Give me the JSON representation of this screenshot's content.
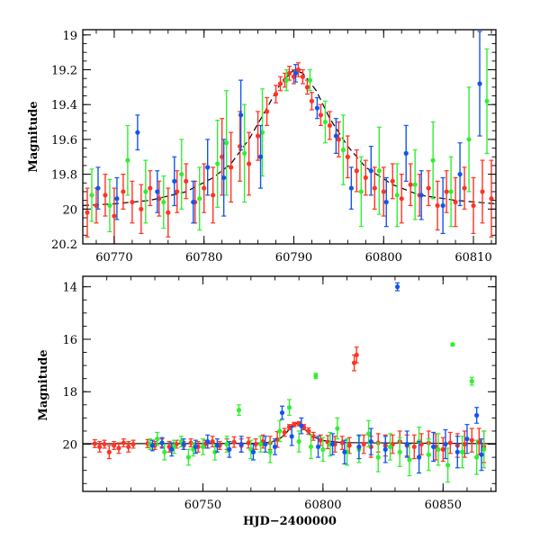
{
  "colors": {
    "red": "#ff3322",
    "green": "#33ee33",
    "blue": "#1155ee",
    "model": "#000000"
  },
  "chart_data": [
    {
      "type": "scatter",
      "panel": "top",
      "ylabel": "Magnitude",
      "xlabel": "",
      "xlim": [
        60766.5,
        60812.5
      ],
      "ylim": [
        20.2,
        18.97
      ],
      "y_inverted": true,
      "xticks": [
        60770,
        60780,
        60790,
        60800,
        60810
      ],
      "yticks": [
        19,
        19.2,
        19.4,
        19.6,
        19.8,
        20,
        20.2
      ],
      "ytick_labels": [
        "19",
        "19.2",
        "19.4",
        "19.6",
        "19.8",
        "20",
        "20.2"
      ],
      "grid": false,
      "legend": "none",
      "model_curve": {
        "style": "dashed",
        "x": [
          60766.5,
          60770,
          60774,
          60778,
          60781,
          60783,
          60785,
          60787,
          60788.5,
          60790,
          60791,
          60792.5,
          60794,
          60796,
          60798,
          60801,
          60804,
          60808,
          60812.5
        ],
        "y": [
          19.98,
          19.97,
          19.95,
          19.9,
          19.82,
          19.74,
          19.6,
          19.42,
          19.28,
          19.2,
          19.22,
          19.32,
          19.48,
          19.64,
          19.76,
          19.86,
          19.92,
          19.95,
          19.97
        ]
      },
      "series": [
        {
          "color": "red",
          "x": [
            60767,
            60768,
            60769,
            60770,
            60771,
            60772,
            60773,
            60774,
            60775,
            60776,
            60777,
            60778,
            60779,
            60780,
            60781,
            60782,
            60783,
            60784,
            60785,
            60786,
            60787,
            60788,
            60788.5,
            60789,
            60789.5,
            60790,
            60790.5,
            60791,
            60791.5,
            60792,
            60793,
            60794,
            60795,
            60796,
            60797,
            60798,
            60799,
            60800,
            60801,
            60802,
            60803,
            60804,
            60805,
            60806,
            60807,
            60808,
            60809,
            60810,
            60811,
            60812
          ],
          "y": [
            20.02,
            19.98,
            19.92,
            20.04,
            19.9,
            19.96,
            20.0,
            19.88,
            19.94,
            20.02,
            19.9,
            19.84,
            19.96,
            19.88,
            19.92,
            19.7,
            19.76,
            19.64,
            19.74,
            19.58,
            19.44,
            19.34,
            19.28,
            19.26,
            19.22,
            19.24,
            19.2,
            19.24,
            19.3,
            19.38,
            19.46,
            19.52,
            19.6,
            19.7,
            19.78,
            19.82,
            19.88,
            19.9,
            19.84,
            19.94,
            19.86,
            19.92,
            19.88,
            19.98,
            19.9,
            19.96,
            19.88,
            19.98,
            19.9,
            19.94
          ],
          "err": [
            0.14,
            0.1,
            0.12,
            0.16,
            0.1,
            0.12,
            0.14,
            0.1,
            0.1,
            0.14,
            0.12,
            0.1,
            0.12,
            0.14,
            0.16,
            0.22,
            0.2,
            0.2,
            0.18,
            0.14,
            0.08,
            0.05,
            0.04,
            0.04,
            0.04,
            0.04,
            0.04,
            0.04,
            0.04,
            0.05,
            0.06,
            0.08,
            0.1,
            0.12,
            0.12,
            0.1,
            0.12,
            0.14,
            0.1,
            0.14,
            0.12,
            0.12,
            0.1,
            0.14,
            0.12,
            0.14,
            0.12,
            0.16,
            0.18,
            0.22
          ]
        },
        {
          "color": "green",
          "x": [
            60767.5,
            60769.5,
            60771.5,
            60773.5,
            60775.5,
            60777.5,
            60779.5,
            60781.5,
            60782.5,
            60784.5,
            60786.5,
            60789.2,
            60791.8,
            60793.5,
            60795.5,
            60797.5,
            60799.5,
            60801.5,
            60803.5,
            60805.5,
            60807.5,
            60809.5,
            60811.5
          ],
          "y": [
            19.92,
            19.98,
            19.72,
            19.9,
            19.96,
            19.8,
            19.94,
            19.74,
            19.62,
            19.68,
            19.56,
            19.26,
            19.26,
            19.5,
            19.66,
            19.9,
            19.78,
            19.92,
            19.86,
            19.72,
            19.9,
            19.6,
            19.38
          ],
          "err": [
            0.15,
            0.15,
            0.2,
            0.18,
            0.15,
            0.2,
            0.18,
            0.25,
            0.3,
            0.28,
            0.25,
            0.06,
            0.06,
            0.12,
            0.2,
            0.2,
            0.25,
            0.18,
            0.2,
            0.22,
            0.2,
            0.3,
            0.3
          ]
        },
        {
          "color": "blue",
          "x": [
            60768.2,
            60770.3,
            60772.6,
            60774.8,
            60776.7,
            60778.8,
            60780.4,
            60782.2,
            60784.1,
            60786.3,
            60790.2,
            60792.6,
            60794.7,
            60796.4,
            60798.6,
            60800.3,
            60802.5,
            60804.2,
            60806.6,
            60808.5,
            60810.7
          ],
          "y": [
            19.88,
            19.94,
            19.56,
            19.9,
            19.84,
            19.96,
            19.76,
            19.82,
            19.46,
            19.7,
            19.22,
            19.42,
            19.58,
            19.88,
            19.78,
            19.96,
            19.68,
            19.92,
            19.98,
            19.8,
            19.28
          ],
          "err": [
            0.12,
            0.12,
            0.1,
            0.12,
            0.14,
            0.12,
            0.16,
            0.22,
            0.2,
            0.18,
            0.05,
            0.06,
            0.1,
            0.12,
            0.14,
            0.14,
            0.16,
            0.14,
            0.16,
            0.18,
            0.3
          ]
        }
      ]
    },
    {
      "type": "scatter",
      "panel": "bottom",
      "ylabel": "Magnitude",
      "xlabel": "HJD−2400000",
      "xlim": [
        60700,
        60872
      ],
      "ylim": [
        21.8,
        13.6
      ],
      "y_inverted": true,
      "xticks": [
        60750,
        60800,
        60850
      ],
      "yticks": [
        14,
        16,
        18,
        20
      ],
      "ytick_labels": [
        "14",
        "16",
        "18",
        "20"
      ],
      "grid": false,
      "legend": "none",
      "model_curve": {
        "style": "solid",
        "x": [
          60700,
          60770,
          60778,
          60782,
          60785,
          60787,
          60789,
          60791,
          60793,
          60796,
          60800,
          60808,
          60872
        ],
        "y": [
          19.98,
          19.97,
          19.93,
          19.8,
          19.55,
          19.3,
          19.2,
          19.25,
          19.48,
          19.72,
          19.86,
          19.94,
          19.98
        ]
      },
      "series": [
        {
          "color": "red",
          "x": [
            60705,
            60707,
            60709,
            60711,
            60713,
            60715,
            60717,
            60719,
            60721,
            60727,
            60730,
            60733,
            60736,
            60739,
            60742,
            60745,
            60748,
            60751,
            60754,
            60757,
            60760,
            60763,
            60766,
            60769,
            60772,
            60775,
            60778,
            60781,
            60784,
            60786,
            60788,
            60790,
            60792,
            60794,
            60796,
            60799,
            60802,
            60805,
            60808,
            60811,
            60813,
            60814,
            60817,
            60820,
            60823,
            60826,
            60829,
            60832,
            60835,
            60838,
            60841,
            60844,
            60847,
            60850,
            60853,
            60856,
            60859,
            60862,
            60865,
            60867
          ],
          "y": [
            19.98,
            20.1,
            20.0,
            20.3,
            20.05,
            20.15,
            19.95,
            20.1,
            20.0,
            19.98,
            20.05,
            19.95,
            20.1,
            20.0,
            20.05,
            19.95,
            20.1,
            20.0,
            19.9,
            20.05,
            20.0,
            19.92,
            20.05,
            19.95,
            20.0,
            19.9,
            19.95,
            19.82,
            19.55,
            19.35,
            19.25,
            19.22,
            19.35,
            19.5,
            19.7,
            19.85,
            19.92,
            20.0,
            19.95,
            20.05,
            16.9,
            16.6,
            20.0,
            20.1,
            19.95,
            20.05,
            20.0,
            19.9,
            20.05,
            20.1,
            20.0,
            19.95,
            20.1,
            20.2,
            19.95,
            20.05,
            20.0,
            19.85,
            19.9,
            20.1
          ],
          "err": [
            0.15,
            0.2,
            0.15,
            0.25,
            0.15,
            0.2,
            0.15,
            0.2,
            0.15,
            0.15,
            0.15,
            0.15,
            0.2,
            0.15,
            0.15,
            0.15,
            0.2,
            0.15,
            0.2,
            0.15,
            0.2,
            0.2,
            0.25,
            0.2,
            0.2,
            0.25,
            0.25,
            0.3,
            0.15,
            0.1,
            0.08,
            0.08,
            0.1,
            0.12,
            0.15,
            0.2,
            0.25,
            0.3,
            0.25,
            0.3,
            0.3,
            0.3,
            0.35,
            0.4,
            0.35,
            0.4,
            0.35,
            0.4,
            0.4,
            0.45,
            0.4,
            0.45,
            0.5,
            0.45,
            0.4,
            0.45,
            0.5,
            0.45,
            0.5,
            0.6
          ]
        },
        {
          "color": "green",
          "x": [
            60728,
            60731,
            60734,
            60738,
            60741,
            60744,
            60746,
            60750,
            60755,
            60760,
            60765,
            60770,
            60774,
            60778,
            60782,
            60786,
            60790,
            60795,
            60797,
            60800,
            60803,
            60806,
            60810,
            60815,
            60819,
            60823,
            60828,
            60832,
            60836,
            60840,
            60844,
            60848,
            60852,
            60854,
            60858,
            60862,
            60864,
            60867
          ],
          "y": [
            20.0,
            19.8,
            20.3,
            20.1,
            19.9,
            20.5,
            20.2,
            20.1,
            20.3,
            20.0,
            18.7,
            20.2,
            20.0,
            20.3,
            19.5,
            18.6,
            19.9,
            20.1,
            17.4,
            20.2,
            20.0,
            19.4,
            20.3,
            20.2,
            19.6,
            20.5,
            20.1,
            20.3,
            20.6,
            19.9,
            20.4,
            20.2,
            20.8,
            16.2,
            20.3,
            17.6,
            20.5,
            20.2
          ],
          "err": [
            0.2,
            0.25,
            0.3,
            0.25,
            0.2,
            0.3,
            0.25,
            0.3,
            0.3,
            0.3,
            0.2,
            0.35,
            0.3,
            0.4,
            0.4,
            0.3,
            0.4,
            0.45,
            0.1,
            0.45,
            0.45,
            0.4,
            0.5,
            0.5,
            0.5,
            0.55,
            0.5,
            0.55,
            0.6,
            0.55,
            0.6,
            0.6,
            0.65,
            0.05,
            0.6,
            0.15,
            0.65,
            0.7
          ]
        },
        {
          "color": "blue",
          "x": [
            60729,
            60733,
            60737,
            60742,
            60747,
            60752,
            60756,
            60761,
            60766,
            60771,
            60776,
            60780,
            60783,
            60787,
            60791,
            60798,
            60804,
            60809,
            60815,
            60820,
            60826,
            60831,
            60835,
            60840,
            60846,
            60851,
            60856,
            60860,
            60864,
            60866
          ],
          "y": [
            20.05,
            19.95,
            20.2,
            20.0,
            20.1,
            19.9,
            20.05,
            20.2,
            20.0,
            20.3,
            20.0,
            20.1,
            18.8,
            19.7,
            19.3,
            20.1,
            20.0,
            20.3,
            20.1,
            19.9,
            20.2,
            14.0,
            20.0,
            20.5,
            20.1,
            20.0,
            20.3,
            19.8,
            18.9,
            20.4
          ],
          "err": [
            0.2,
            0.2,
            0.25,
            0.2,
            0.25,
            0.25,
            0.25,
            0.3,
            0.3,
            0.3,
            0.3,
            0.3,
            0.25,
            0.35,
            0.3,
            0.4,
            0.4,
            0.45,
            0.45,
            0.5,
            0.5,
            0.15,
            0.5,
            0.6,
            0.55,
            0.55,
            0.6,
            0.55,
            0.3,
            0.6
          ]
        }
      ]
    }
  ]
}
